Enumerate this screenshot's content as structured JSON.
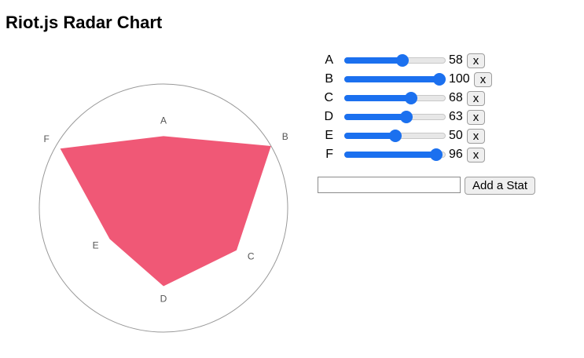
{
  "page": {
    "title": "Riot.js Radar Chart"
  },
  "chart_data": {
    "type": "radar",
    "title": "Riot.js Radar Chart",
    "categories": [
      "A",
      "B",
      "C",
      "D",
      "E",
      "F"
    ],
    "values": [
      58,
      100,
      68,
      63,
      50,
      96
    ],
    "max": 100,
    "grid": "single outer circle, no spokes",
    "legend": "none",
    "fill_color": "#f05876",
    "axis_circle_color": "#999999",
    "label_color": "#555555"
  },
  "stats": [
    {
      "label": "A",
      "value": 58,
      "max": 100,
      "remove_label": "x"
    },
    {
      "label": "B",
      "value": 100,
      "max": 100,
      "remove_label": "x"
    },
    {
      "label": "C",
      "value": 68,
      "max": 100,
      "remove_label": "x"
    },
    {
      "label": "D",
      "value": 63,
      "max": 100,
      "remove_label": "x"
    },
    {
      "label": "E",
      "value": 50,
      "max": 100,
      "remove_label": "x"
    },
    {
      "label": "F",
      "value": 96,
      "max": 100,
      "remove_label": "x"
    }
  ],
  "add_stat": {
    "input_value": "",
    "button_label": "Add a Stat"
  },
  "colors": {
    "slider_accent": "#1b70ef",
    "slider_track": "#e7e7e7"
  }
}
